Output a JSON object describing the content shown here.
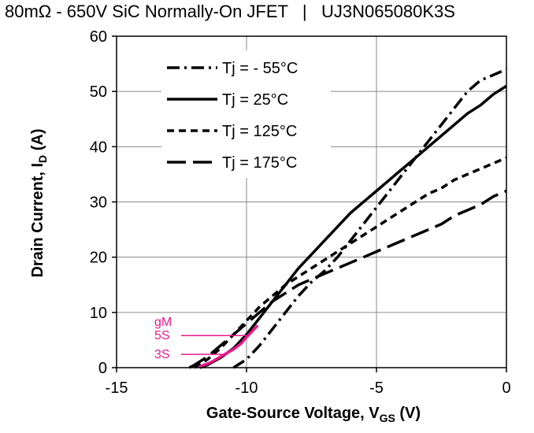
{
  "page_title": "80mΩ - 650V SiC Normally-On JFET   |   UJ3N065080K3S",
  "chart_data": {
    "type": "line",
    "title": "80mΩ - 650V SiC Normally-On JFET   |   UJ3N065080K3S",
    "xlabel": {
      "main": "Gate-Source Voltage, V",
      "sub": "GS",
      "tail": " (V)"
    },
    "ylabel": {
      "main": "Drain Current, I",
      "sub": "D",
      "tail": " (A)"
    },
    "xlim": [
      -15,
      0
    ],
    "ylim": [
      0,
      60
    ],
    "x_ticks": [
      -15,
      -10,
      -5,
      0
    ],
    "y_ticks": [
      0,
      10,
      20,
      30,
      40,
      50,
      60
    ],
    "grid": true,
    "legend_position": "top-left",
    "series": [
      {
        "name": "Tj = - 55°C",
        "dash": "dashdot",
        "x": [
          -10.5,
          -10,
          -9.5,
          -9,
          -8.5,
          -8,
          -7.5,
          -7,
          -6.5,
          -6,
          -5.5,
          -5,
          -4.5,
          -4,
          -3.5,
          -3,
          -2.5,
          -2,
          -1.5,
          -1,
          -0.5,
          0
        ],
        "y": [
          0,
          1.5,
          4,
          7,
          10,
          13,
          15.5,
          17.5,
          20,
          23,
          26,
          29,
          32,
          35,
          38,
          41,
          44,
          47,
          50,
          52,
          53,
          54
        ]
      },
      {
        "name": "Tj = 25°C",
        "dash": "solid",
        "x": [
          -11.8,
          -11.5,
          -11,
          -10.5,
          -10,
          -9.5,
          -9,
          -8.5,
          -8,
          -7.5,
          -7,
          -6.5,
          -6,
          -5.5,
          -5,
          -4.5,
          -4,
          -3.5,
          -3,
          -2.5,
          -2,
          -1.5,
          -1,
          -0.5,
          0
        ],
        "y": [
          0,
          0.5,
          1.8,
          3.5,
          6,
          9,
          12,
          15,
          18,
          20.5,
          23,
          25.5,
          28,
          30,
          32,
          34,
          36,
          38,
          40,
          42,
          44,
          46,
          47.5,
          49.5,
          51
        ]
      },
      {
        "name": "Tj = 125°C",
        "dash": "dash",
        "x": [
          -12,
          -11.5,
          -11,
          -10.5,
          -10,
          -9.5,
          -9,
          -8.5,
          -8,
          -7.5,
          -7,
          -6.5,
          -6,
          -5.5,
          -5,
          -4.5,
          -4,
          -3.5,
          -3,
          -2.5,
          -2,
          -1.5,
          -1,
          -0.5,
          0
        ],
        "y": [
          0,
          1.5,
          3.5,
          6,
          8.5,
          11,
          13,
          15,
          16.5,
          18,
          19.5,
          21,
          22.5,
          24,
          25.5,
          27,
          28.5,
          30,
          31.5,
          32.5,
          34,
          35,
          36,
          37,
          38
        ]
      },
      {
        "name": "Tj = 175°C",
        "dash": "longdash",
        "x": [
          -12.2,
          -12,
          -11.5,
          -11,
          -10.5,
          -10,
          -9.5,
          -9,
          -8.5,
          -8,
          -7.5,
          -7,
          -6.5,
          -6,
          -5.5,
          -5,
          -4.5,
          -4,
          -3.5,
          -3,
          -2.5,
          -2,
          -1.5,
          -1,
          -0.5,
          0
        ],
        "y": [
          0,
          0.5,
          2,
          4,
          6,
          8,
          10,
          12,
          13.5,
          15,
          16,
          17,
          18,
          19,
          20,
          21,
          22,
          23,
          24,
          25,
          26,
          27.5,
          28.5,
          29.5,
          31,
          32
        ]
      }
    ],
    "annotations": {
      "color": "#e8198b",
      "labels": [
        "gM",
        "5S",
        "3S"
      ],
      "highlight": {
        "x": [
          -11.8,
          -11.4,
          -11,
          -10.5,
          -10.2,
          -10,
          -9.8,
          -9.6
        ],
        "y": [
          0.2,
          0.9,
          2.0,
          3.3,
          4.4,
          5.5,
          6.5,
          7.5
        ]
      },
      "ref_lines": [
        {
          "label": "5S",
          "y": 5.8,
          "x_end": -9.98
        },
        {
          "label": "3S",
          "y": 2.4,
          "x_end": -10.75
        }
      ]
    }
  }
}
